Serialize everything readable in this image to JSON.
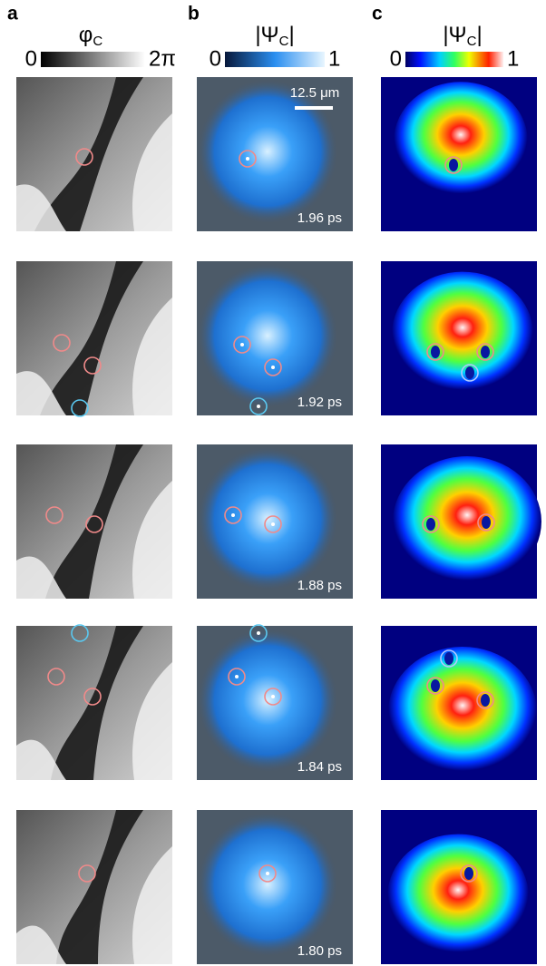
{
  "panels": [
    {
      "letter": "a",
      "title": {
        "symbol": "φ",
        "subscript": "C"
      },
      "scale_min": "0",
      "scale_max": "2π"
    },
    {
      "letter": "b",
      "title": {
        "prefix": "|Ψ",
        "subscript": "C",
        "suffix": "|"
      },
      "scale_min": "0",
      "scale_max": "1"
    },
    {
      "letter": "c",
      "title": {
        "prefix": "|Ψ",
        "subscript": "C",
        "suffix": "|"
      },
      "scale_min": "0",
      "scale_max": "1"
    }
  ],
  "scale_bar": "12.5 μm",
  "rows": [
    {
      "time": "1.96 ps"
    },
    {
      "time": "1.92 ps"
    },
    {
      "time": "1.88 ps"
    },
    {
      "time": "1.84 ps"
    },
    {
      "time": "1.80 ps"
    }
  ]
}
